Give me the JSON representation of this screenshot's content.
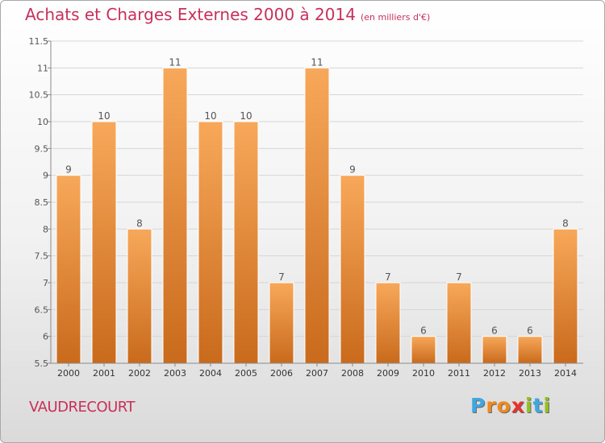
{
  "header": {
    "title": "Achats et Charges Externes 2000 à 2014",
    "subtitle": "(en milliers d'€)"
  },
  "footer": {
    "commune": "VAUDRECOURT",
    "logo_text": "Proxiti"
  },
  "colors": {
    "title": "#c8305a",
    "bar_light": "#f8a85a",
    "bar_dark": "#c96a1c",
    "grid": "#d6d6d6",
    "axis": "#8a8a8a"
  },
  "chart_data": {
    "type": "bar",
    "title": "Achats et Charges Externes 2000 à 2014",
    "xlabel": "",
    "ylabel": "",
    "categories": [
      "2000",
      "2001",
      "2002",
      "2003",
      "2004",
      "2005",
      "2006",
      "2007",
      "2008",
      "2009",
      "2010",
      "2011",
      "2012",
      "2013",
      "2014"
    ],
    "values": [
      9,
      10,
      8,
      11,
      10,
      10,
      7,
      11,
      9,
      7,
      6,
      7,
      6,
      6,
      8
    ],
    "data_labels": [
      "9",
      "10",
      "8",
      "11",
      "10",
      "10",
      "7",
      "11",
      "9",
      "7",
      "6",
      "7",
      "6",
      "6",
      "8"
    ],
    "ylim": [
      5.5,
      11.5
    ],
    "yticks": [
      "5.5",
      "6",
      "6.5",
      "7",
      "7.5",
      "8",
      "8.5",
      "9",
      "9.5",
      "10",
      "10.5",
      "11",
      "11.5"
    ],
    "grid": true,
    "legend": "none"
  }
}
